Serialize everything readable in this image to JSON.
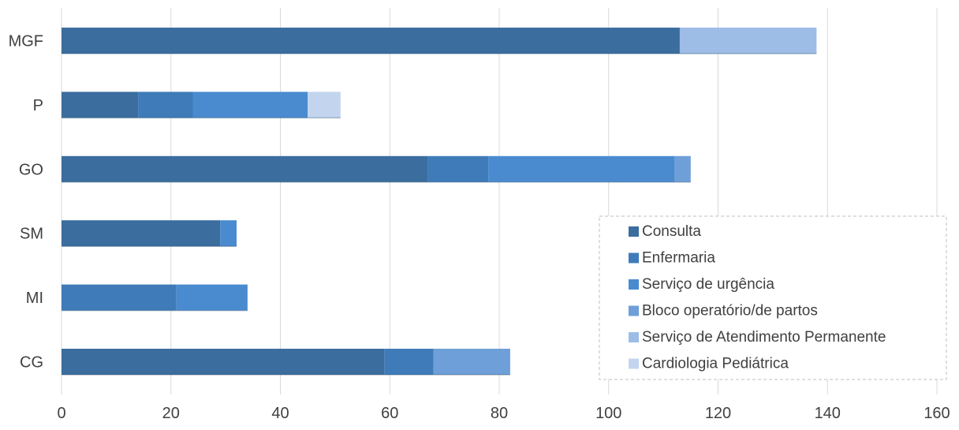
{
  "chart_data": {
    "type": "bar",
    "orientation": "horizontal",
    "stacked": true,
    "categories": [
      "MGF",
      "P",
      "GO",
      "SM",
      "MI",
      "CG"
    ],
    "series": [
      {
        "name": "Consulta",
        "color": "#3b6d9e",
        "values": [
          113,
          14,
          67,
          29,
          0,
          59
        ]
      },
      {
        "name": "Enfermaria",
        "color": "#3f7bb8",
        "values": [
          0,
          10,
          11,
          0,
          21,
          9
        ]
      },
      {
        "name": "Serviço de urgência",
        "color": "#4a8bd0",
        "values": [
          0,
          21,
          34,
          3,
          13,
          0
        ]
      },
      {
        "name": "Bloco operatório/de partos",
        "color": "#6e9fd8",
        "values": [
          0,
          0,
          3,
          0,
          0,
          14
        ]
      },
      {
        "name": "Serviço de Atendimento Permanente",
        "color": "#9dbde6",
        "values": [
          25,
          0,
          0,
          0,
          0,
          0
        ]
      },
      {
        "name": "Cardiologia Pediátrica",
        "color": "#c3d5ee",
        "values": [
          0,
          6,
          0,
          0,
          0,
          0
        ]
      }
    ],
    "xlim": [
      0,
      160
    ],
    "xticks": [
      "0",
      "20",
      "40",
      "60",
      "80",
      "100",
      "120",
      "140",
      "160"
    ],
    "grid": "vertical",
    "legend_position": "bottom-right"
  }
}
